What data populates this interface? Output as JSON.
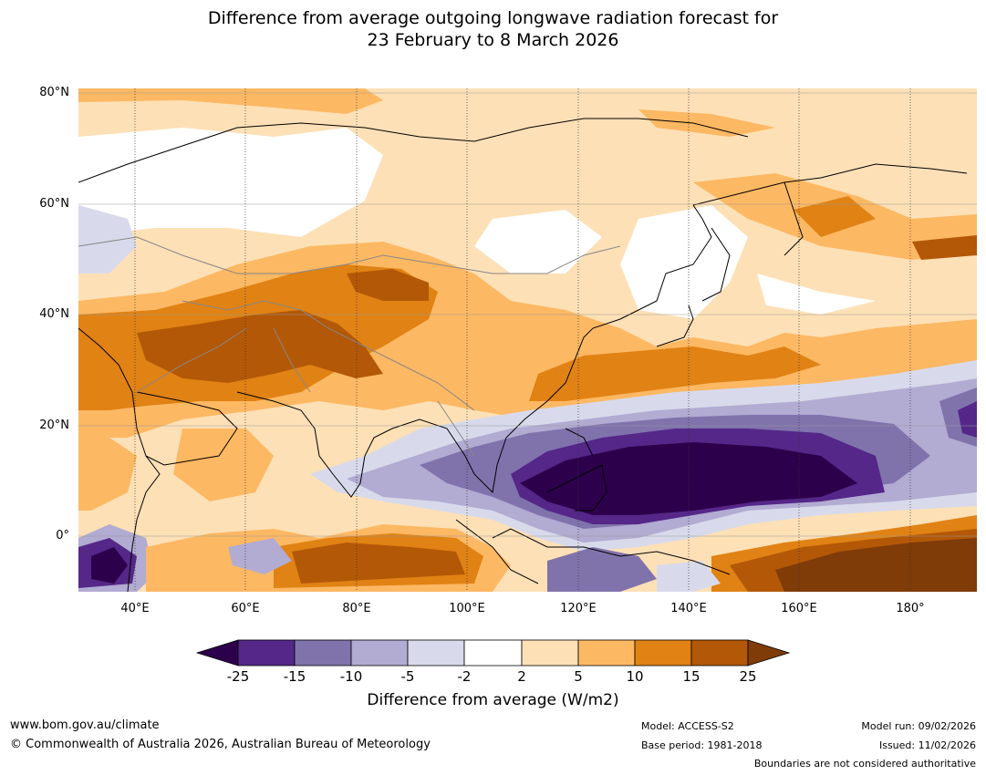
{
  "title": {
    "line1": "Difference from average outgoing longwave radiation forecast for",
    "line2": "23 February to 8 March 2026"
  },
  "axes": {
    "lat_labels": [
      "80°N",
      "60°N",
      "40°N",
      "20°N",
      "0°"
    ],
    "lon_labels": [
      "40°E",
      "60°E",
      "80°E",
      "100°E",
      "120°E",
      "140°E",
      "160°E",
      "180°"
    ]
  },
  "colorbar": {
    "ticks": [
      "-25",
      "-15",
      "-10",
      "-5",
      "-2",
      "2",
      "5",
      "10",
      "15",
      "25"
    ],
    "label": "Difference from average (W/m2)",
    "colors": {
      "lt_-25": "#2d004b",
      "-25_-15": "#542788",
      "-15_-10": "#8073ac",
      "-10_-5": "#b2abd2",
      "-5_-2": "#d8daeb",
      "-2_2": "#ffffff",
      "2_5": "#fee0b6",
      "5_10": "#fdb863",
      "10_15": "#e08214",
      "15_25": "#b35806",
      "gt_25": "#7f3b08"
    }
  },
  "footer": {
    "website": "www.bom.gov.au/climate",
    "copyright": "© Commonwealth of Australia 2026, Australian Bureau of Meteorology",
    "model": "Model: ACCESS-S2",
    "base_period": "Base period: 1981-2018",
    "model_run": "Model run: 09/02/2026",
    "issued": "Issued: 11/02/2026",
    "disclaimer": "Boundaries are not considered authoritative"
  }
}
